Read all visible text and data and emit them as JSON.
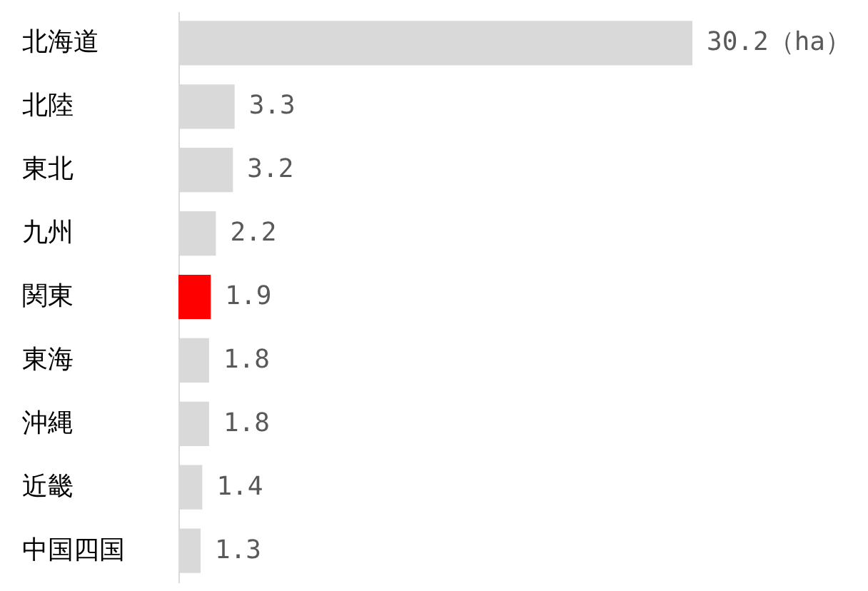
{
  "chart_data": {
    "type": "bar",
    "orientation": "horizontal",
    "categories": [
      "北海道",
      "北陸",
      "東北",
      "九州",
      "関東",
      "東海",
      "沖縄",
      "近畿",
      "中国四国"
    ],
    "values": [
      30.2,
      3.3,
      3.2,
      2.2,
      1.9,
      1.8,
      1.8,
      1.4,
      1.3
    ],
    "colors": [
      "#d9d9d9",
      "#d9d9d9",
      "#d9d9d9",
      "#d9d9d9",
      "#ff0000",
      "#d9d9d9",
      "#d9d9d9",
      "#d9d9d9",
      "#d9d9d9"
    ],
    "value_labels": [
      "30.2（ha）",
      "3.3",
      "3.2",
      "2.2",
      "1.9",
      "1.8",
      "1.8",
      "1.4",
      "1.3"
    ],
    "legend": false
  }
}
